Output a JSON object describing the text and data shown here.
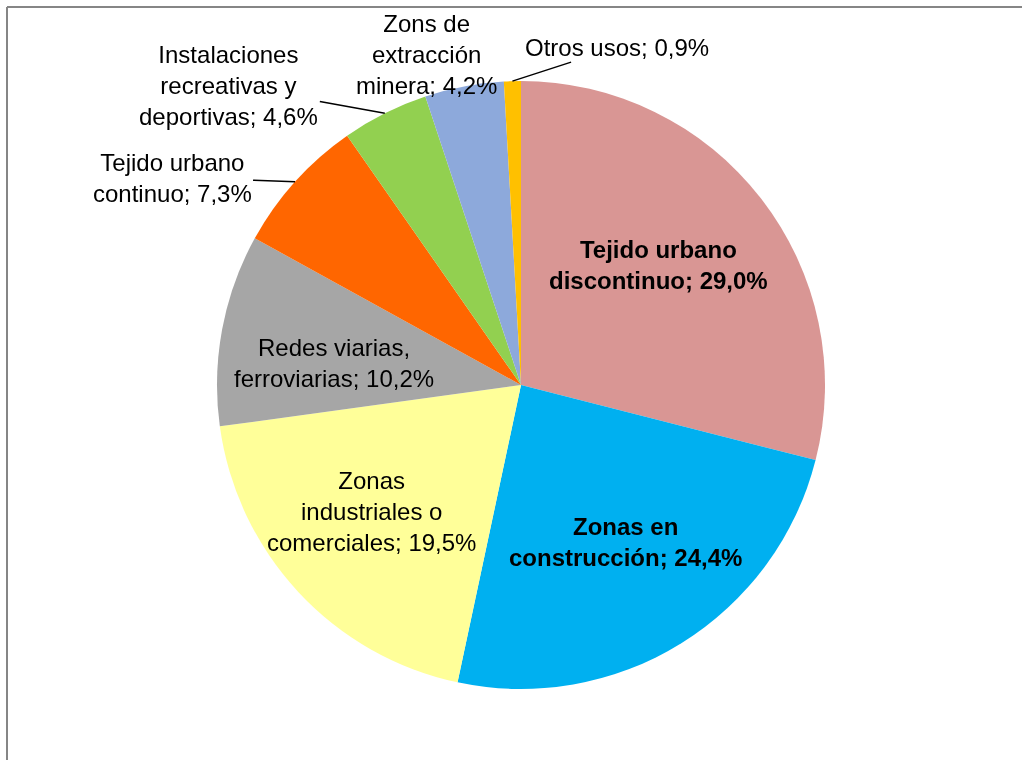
{
  "chart_data": {
    "type": "pie",
    "categories": [
      "Tejido urbano discontinuo",
      "Zonas en construcción",
      "Zonas industriales o comerciales",
      "Redes viarias, ferroviarias",
      "Tejido urbano continuo",
      "Instalaciones recreativas y deportivas",
      "Zons de extracción minera",
      "Otros usos"
    ],
    "values": [
      29.0,
      24.4,
      19.5,
      10.2,
      7.3,
      4.6,
      4.2,
      0.9
    ],
    "colors": [
      "#d99694",
      "#00b0f0",
      "#ffff99",
      "#a6a6a6",
      "#ff6600",
      "#92d050",
      "#8da9db",
      "#ffc000"
    ],
    "value_labels": [
      "29,0%",
      "24,4%",
      "19,5%",
      "10,2%",
      "7,3%",
      "4,6%",
      "4,2%",
      "0,9%"
    ],
    "legend": false
  }
}
